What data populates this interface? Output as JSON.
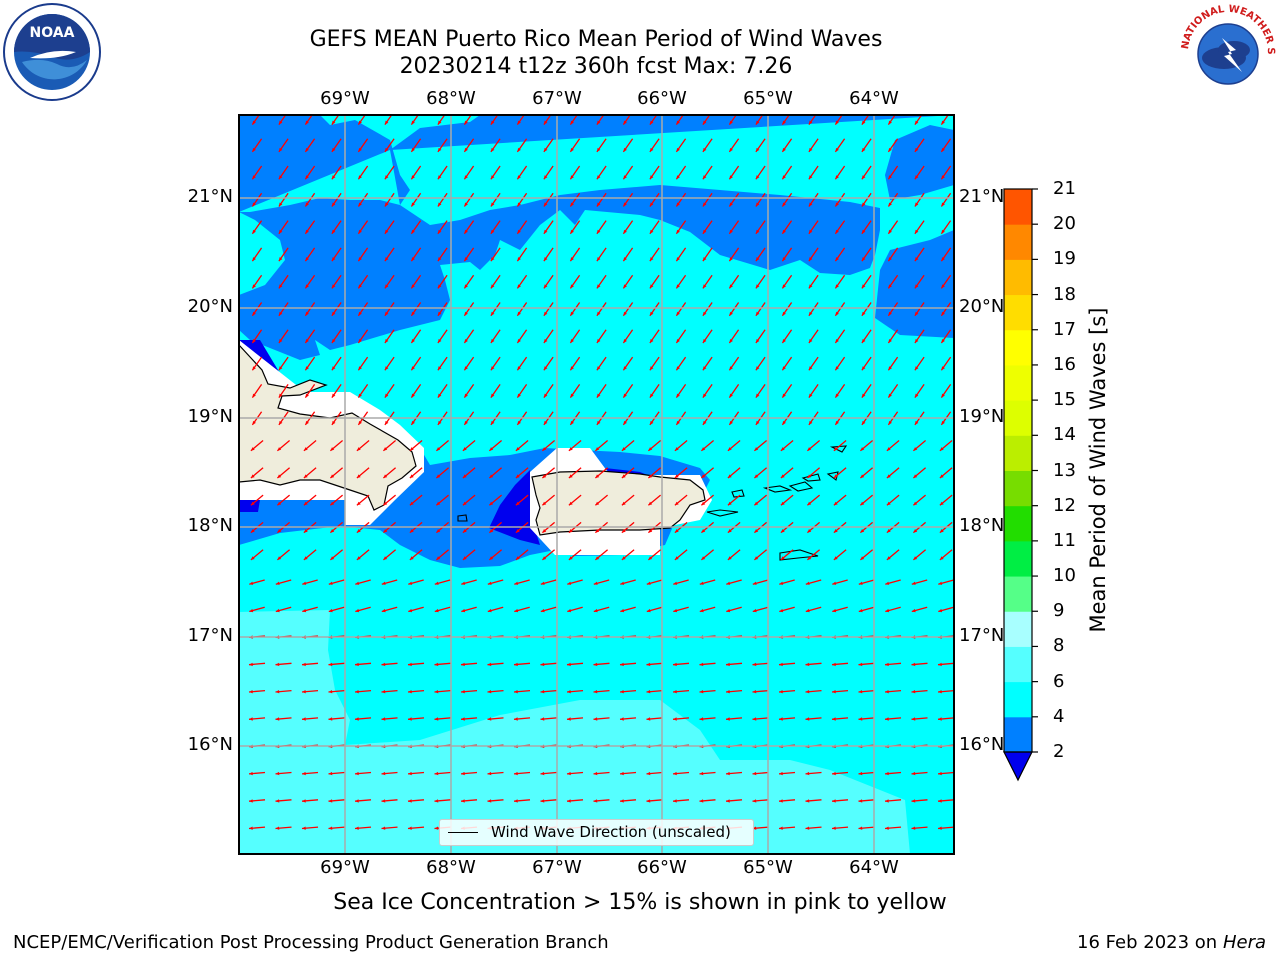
{
  "header": {
    "title_line1": "GEFS MEAN Puerto Rico Mean Period of Wind Waves",
    "title_line2": "20230214 t12z 360h fcst   Max: 7.26"
  },
  "map": {
    "lon_labels": [
      "69°W",
      "68°W",
      "67°W",
      "66°W",
      "65°W",
      "64°W"
    ],
    "lat_labels": [
      "21°N",
      "20°N",
      "19°N",
      "18°N",
      "17°N",
      "16°N"
    ],
    "legend_label": "Wind Wave Direction (unscaled)",
    "colors": {
      "land": "#efeddc",
      "period_2_4": "#0080ff",
      "period_4_6": "#00ffff",
      "period_6_8": "#55ffff",
      "below_2": "#0000ee",
      "arrow": "#ff0000"
    }
  },
  "colorbar": {
    "title": "Mean Period of Wind Waves [s]",
    "ticks": [
      "2",
      "4",
      "6",
      "8",
      "9",
      "10",
      "11",
      "12",
      "13",
      "14",
      "15",
      "16",
      "17",
      "18",
      "19",
      "20",
      "21"
    ],
    "colors": [
      "#0080ff",
      "#00ffff",
      "#55ffff",
      "#a8ffff",
      "#55ff88",
      "#00ee44",
      "#22dd00",
      "#77dd00",
      "#bbee00",
      "#ddff00",
      "#eeff00",
      "#ffff00",
      "#ffdd00",
      "#ffbb00",
      "#ff8800",
      "#ff5500",
      "#ff2200",
      "#ff0000"
    ],
    "extend_color": "#0000ee"
  },
  "logos": {
    "noaa_text": "NOAA",
    "nws_text": "NATIONAL WEATHER SERVICE"
  },
  "caption": "Sea Ice Concentration > 15% is shown in pink to yellow",
  "footer": {
    "left": "NCEP/EMC/Verification Post Processing Product Generation Branch",
    "right_date": "16 Feb 2023 on",
    "right_machine": "Hera"
  }
}
